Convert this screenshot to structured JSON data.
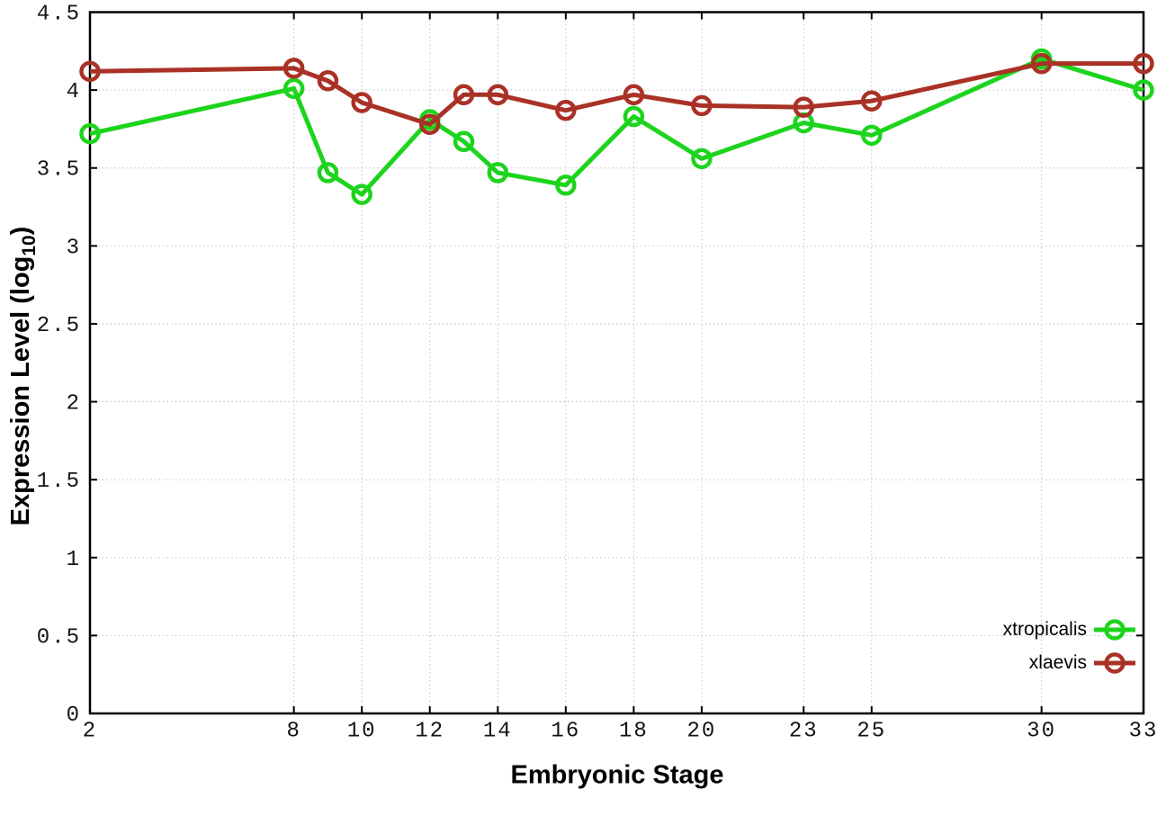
{
  "chart_data": {
    "type": "line",
    "title": "",
    "xlabel": "Embryonic Stage",
    "ylabel_prefix": "Expression Level (log",
    "ylabel_sub": "10",
    "ylabel_suffix": ")",
    "xlim": [
      2,
      33
    ],
    "ylim": [
      0,
      4.5
    ],
    "grid": true,
    "legend_position": "bottom-right",
    "x": [
      2,
      8,
      9,
      10,
      12,
      13,
      14,
      16,
      18,
      20,
      23,
      25,
      30,
      33
    ],
    "xticks": [
      2,
      8,
      10,
      12,
      14,
      16,
      18,
      20,
      23,
      25,
      30,
      33
    ],
    "xtick_labels": [
      "2",
      "8",
      "10",
      "12",
      "14",
      "16",
      "18",
      "20",
      "23",
      "25",
      "30",
      "33"
    ],
    "yticks": [
      0,
      0.5,
      1,
      1.5,
      2,
      2.5,
      3,
      3.5,
      4,
      4.5
    ],
    "ytick_labels": [
      "0",
      "0.5",
      "1",
      "1.5",
      "2",
      "2.5",
      "3",
      "3.5",
      "4",
      "4.5"
    ],
    "series": [
      {
        "name": "xtropicalis",
        "color": "#1dd41d",
        "values": [
          3.72,
          4.01,
          3.47,
          3.33,
          3.81,
          3.67,
          3.47,
          3.39,
          3.83,
          3.56,
          3.79,
          3.71,
          4.2,
          4.0
        ]
      },
      {
        "name": "xlaevis",
        "color": "#a93126",
        "values": [
          4.12,
          4.14,
          4.06,
          3.92,
          3.78,
          3.97,
          3.97,
          3.87,
          3.97,
          3.9,
          3.89,
          3.93,
          4.17,
          4.17
        ]
      }
    ],
    "colors": {
      "grid": "#c2c2c2",
      "axis": "#000000",
      "background": "#ffffff"
    }
  }
}
